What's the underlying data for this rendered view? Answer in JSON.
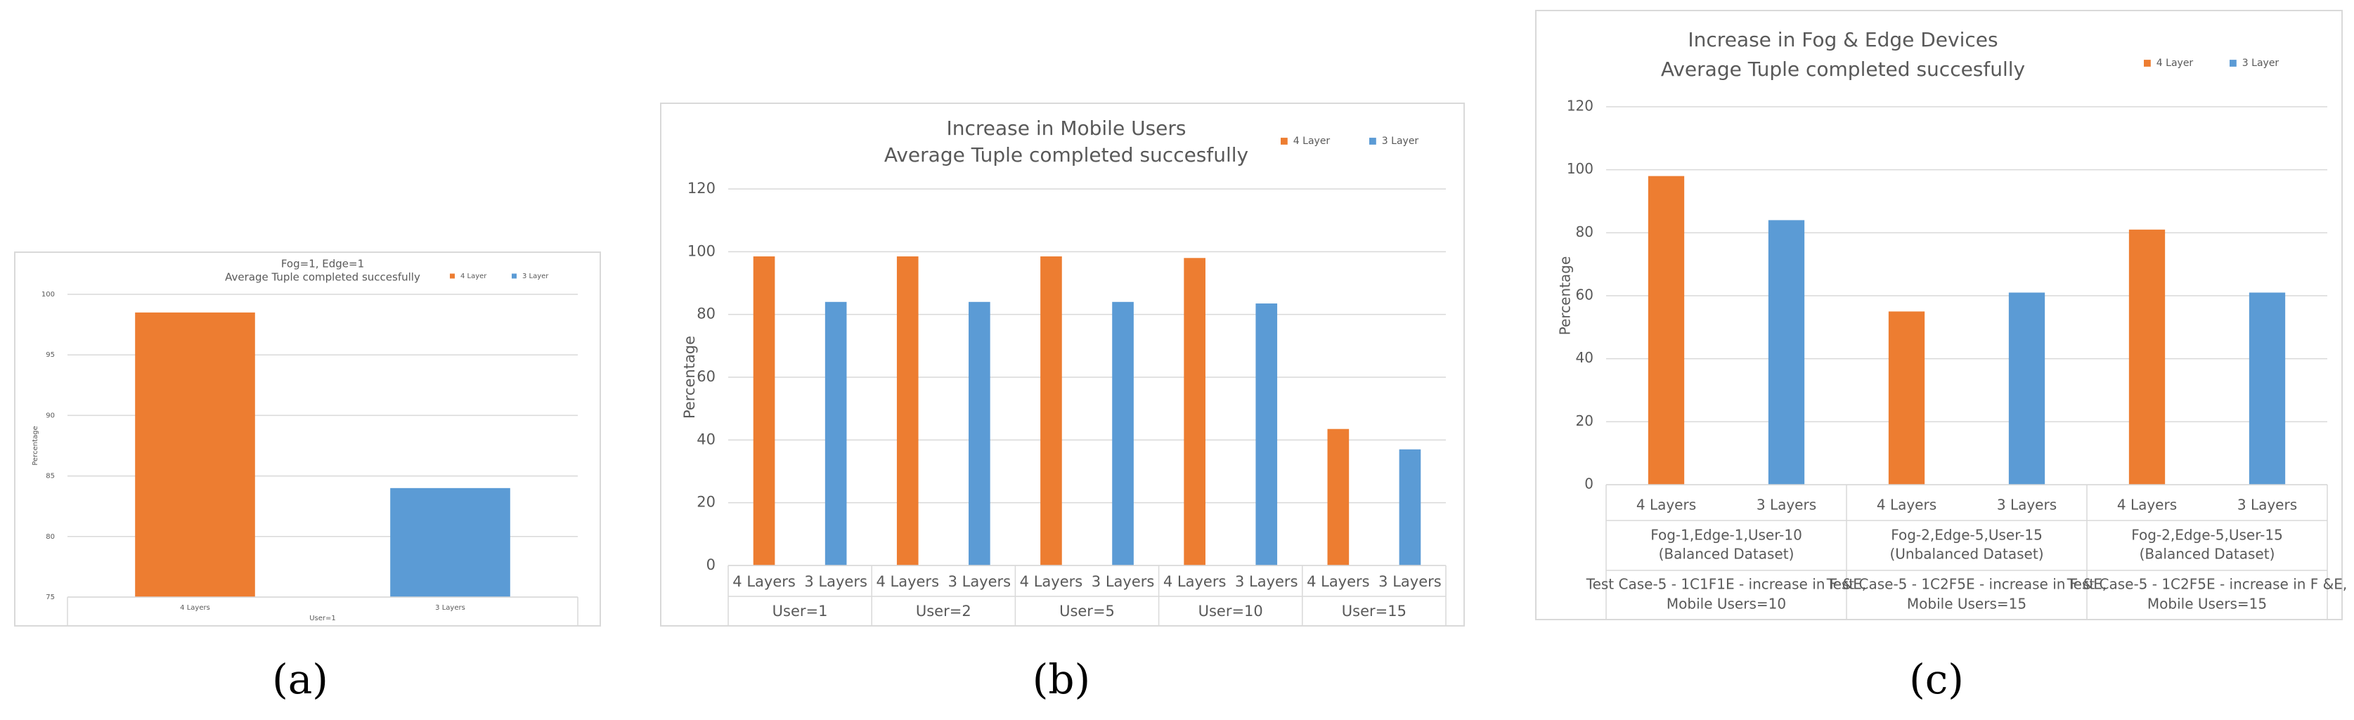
{
  "chart_data": [
    {
      "type": "bar",
      "title": "Fog=1, Edge=1",
      "subtitle": "Average Tuple completed succesfully",
      "y_label": "Percentage",
      "categories": [
        "User=1"
      ],
      "bar_labels": [
        "4 Layers",
        "3 Layers"
      ],
      "series": [
        {
          "name": "4 Layer",
          "color": "#ed7d31",
          "values": [
            98.5
          ]
        },
        {
          "name": "3 Layer",
          "color": "#5b9bd5",
          "values": [
            84
          ]
        }
      ],
      "ylim": [
        75,
        100
      ],
      "yticks": [
        75,
        80,
        85,
        90,
        95,
        100
      ],
      "grid": true,
      "legend": "top-right",
      "caption": "(a)"
    },
    {
      "type": "bar",
      "title": "Increase in Mobile Users",
      "subtitle": "Average Tuple completed succesfully",
      "y_label": "Percentage",
      "categories": [
        "User=1",
        "User=2",
        "User=5",
        "User=10",
        "User=15"
      ],
      "bar_labels": [
        "4 Layers",
        "3 Layers"
      ],
      "series": [
        {
          "name": "4 Layer",
          "color": "#ed7d31",
          "values": [
            98.5,
            98.5,
            98.5,
            98,
            43.5
          ]
        },
        {
          "name": "3 Layer",
          "color": "#5b9bd5",
          "values": [
            84,
            84,
            84,
            83.5,
            37
          ]
        }
      ],
      "ylim": [
        0,
        120
      ],
      "yticks": [
        0,
        20,
        40,
        60,
        80,
        100,
        120
      ],
      "grid": true,
      "legend": "top-right",
      "caption": "(b)"
    },
    {
      "type": "bar",
      "title": "Increase in Fog & Edge Devices",
      "subtitle": "Average Tuple completed succesfully",
      "y_label": "Percentage",
      "categories": [
        [
          "Fog-1,Edge-1,User-10",
          "(Balanced Dataset)"
        ],
        [
          "Fog-2,Edge-5,User-15",
          "(Unbalanced Dataset)"
        ],
        [
          "Fog-2,Edge-5,User-15",
          "(Balanced Dataset)"
        ]
      ],
      "category_notes": [
        [
          "Test Case-5  - 1C1F1E - increase in F &E,",
          "Mobile Users=10"
        ],
        [
          "Test Case-5  - 1C2F5E - increase in F &E,",
          "Mobile Users=15"
        ],
        [
          "Test Case-5  - 1C2F5E - increase in F &E,",
          "Mobile Users=15"
        ]
      ],
      "bar_labels": [
        "4 Layers",
        "3 Layers"
      ],
      "series": [
        {
          "name": "4 Layer",
          "color": "#ed7d31",
          "values": [
            98,
            55,
            81
          ]
        },
        {
          "name": "3 Layer",
          "color": "#5b9bd5",
          "values": [
            84,
            61,
            61
          ]
        }
      ],
      "ylim": [
        0,
        120
      ],
      "yticks": [
        0,
        20,
        40,
        60,
        80,
        100,
        120
      ],
      "grid": true,
      "legend": "top-right",
      "caption": "(c)"
    }
  ]
}
